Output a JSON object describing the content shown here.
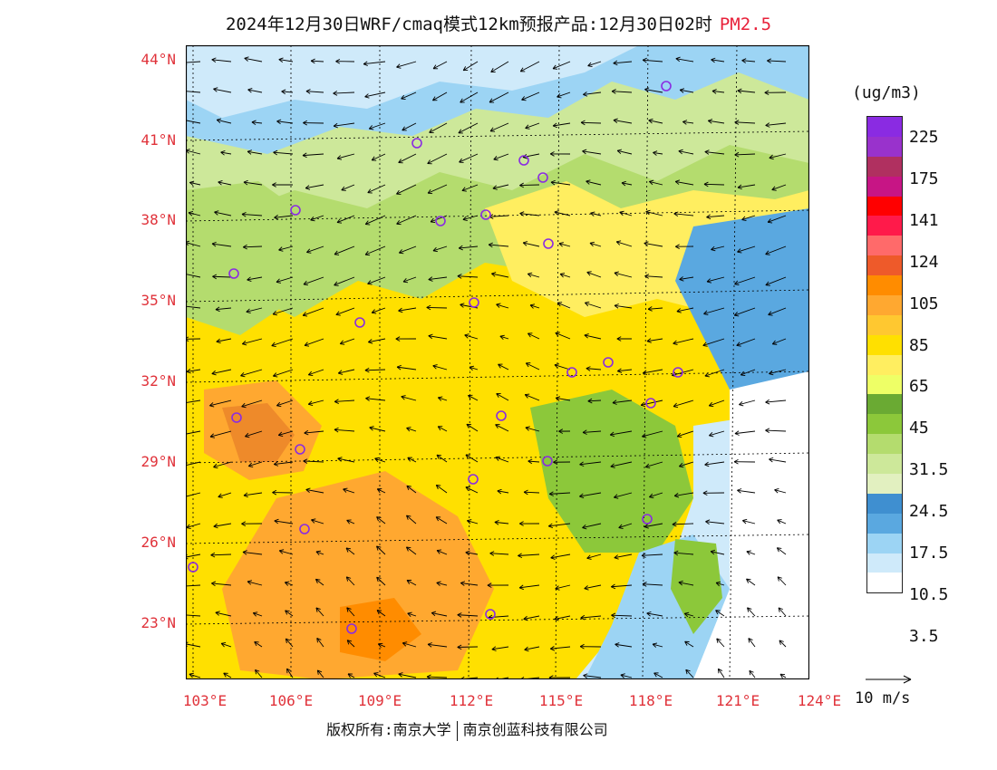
{
  "title": {
    "text": "2024年12月30日WRF/cmaq模式12km预报产品:12月30日02时",
    "pollutant": "PM2.5"
  },
  "map": {
    "lat_labels": [
      "44°N",
      "41°N",
      "38°N",
      "35°N",
      "32°N",
      "29°N",
      "26°N",
      "23°N"
    ],
    "lon_labels": [
      "103°E",
      "106°E",
      "109°E",
      "112°E",
      "115°E",
      "118°E",
      "121°E",
      "124°E"
    ],
    "lat_values": [
      44,
      41,
      38,
      35,
      32,
      29,
      26,
      23
    ],
    "lon_values": [
      103,
      106,
      109,
      112,
      115,
      118,
      121,
      124
    ],
    "station_marker_color": "#8a2be2",
    "wind_arrow_color": "#000000"
  },
  "legend": {
    "unit": "(ug/m3)",
    "colors": [
      "#8a2be2",
      "#9932cc",
      "#b03060",
      "#c71585",
      "#ff0000",
      "#ff1a4a",
      "#ff6a6a",
      "#ee5a2a",
      "#ff8c00",
      "#ffa830",
      "#ffc830",
      "#ffe000",
      "#ffee60",
      "#eeff66",
      "#6aaa33",
      "#8cc83a",
      "#b4dc6e",
      "#cde89a",
      "#e2f0c0",
      "#3f8fd0",
      "#5aa8e0",
      "#9cd4f4",
      "#cfeafa",
      "#ffffff"
    ],
    "labels": [
      "225",
      "175",
      "141",
      "124",
      "105",
      "85",
      "65",
      "45",
      "31.5",
      "24.5",
      "17.5",
      "10.5",
      "3.5"
    ],
    "wind_reference": "10 m/s"
  },
  "credit": {
    "rights": "版权所有:南京大学",
    "company": "南京创蓝科技有限公司"
  }
}
